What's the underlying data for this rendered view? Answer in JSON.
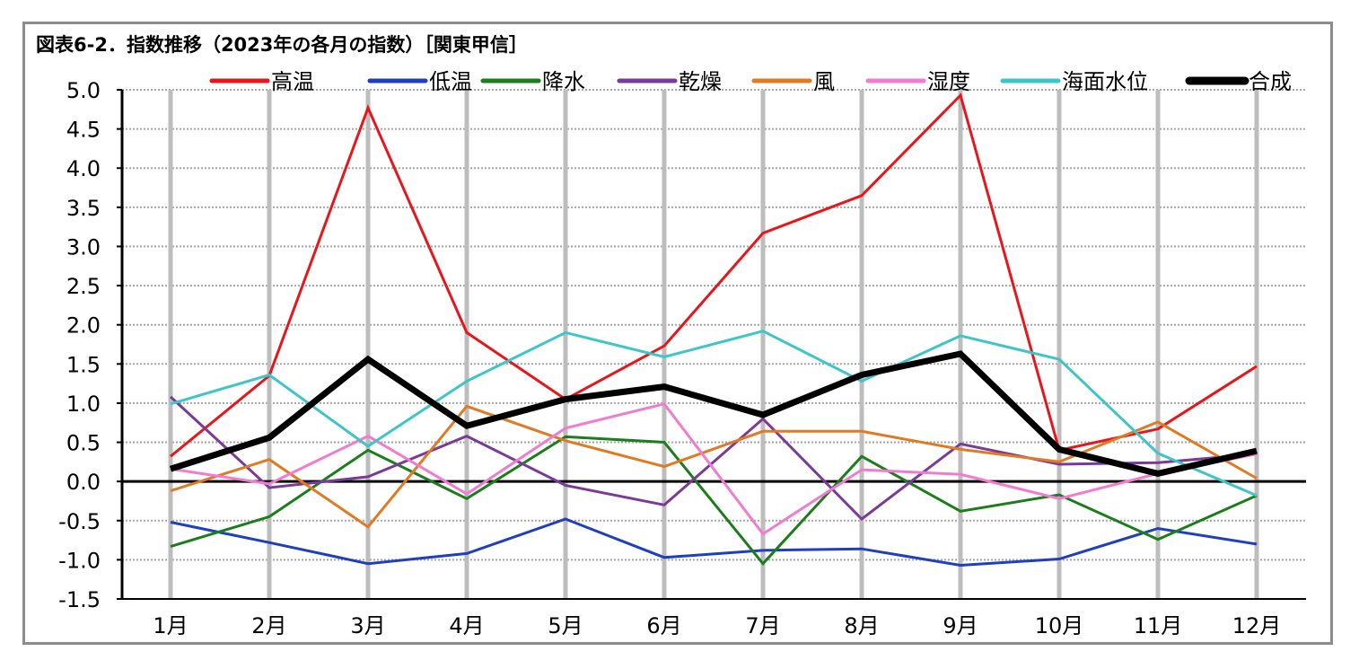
{
  "chart_data": {
    "type": "line",
    "title": "図表6-2．指数推移（2023年の各月の指数）［関東甲信］",
    "xlabel": "",
    "ylabel": "",
    "categories": [
      "1月",
      "2月",
      "3月",
      "4月",
      "5月",
      "6月",
      "7月",
      "8月",
      "9月",
      "10月",
      "11月",
      "12月"
    ],
    "ylim": [
      -1.5,
      5.0
    ],
    "yticks": [
      5.0,
      4.5,
      4.0,
      3.5,
      3.0,
      2.5,
      2.0,
      1.5,
      1.0,
      0.5,
      0.0,
      -0.5,
      -1.0,
      -1.5
    ],
    "ytick_labels": [
      "5.0",
      "4.5",
      "4.0",
      "3.5",
      "3.0",
      "2.5",
      "2.0",
      "1.5",
      "1.0",
      "0.5",
      "0.0",
      "-0.5",
      "-1.0",
      "-1.5"
    ],
    "grid": true,
    "legend_position": "top",
    "series": [
      {
        "name": "高温",
        "color": "#e8161b",
        "width": 3,
        "values": [
          0.32,
          1.35,
          4.77,
          1.9,
          1.05,
          1.73,
          3.17,
          3.65,
          4.93,
          0.4,
          0.67,
          1.47
        ]
      },
      {
        "name": "低温",
        "color": "#1f3fbf",
        "width": 3,
        "values": [
          -0.52,
          -0.78,
          -1.05,
          -0.92,
          -0.48,
          -0.97,
          -0.88,
          -0.86,
          -1.07,
          -0.99,
          -0.6,
          -0.8
        ]
      },
      {
        "name": "降水",
        "color": "#1c7d1c",
        "width": 3,
        "values": [
          -0.83,
          -0.45,
          0.4,
          -0.22,
          0.57,
          0.5,
          -1.05,
          0.32,
          -0.38,
          -0.17,
          -0.74,
          -0.18
        ]
      },
      {
        "name": "乾燥",
        "color": "#7a3b98",
        "width": 3,
        "values": [
          1.08,
          -0.08,
          0.06,
          0.58,
          -0.05,
          -0.3,
          0.8,
          -0.48,
          0.48,
          0.22,
          0.24,
          0.35
        ]
      },
      {
        "name": "風",
        "color": "#e07a23",
        "width": 3,
        "values": [
          -0.12,
          0.28,
          -0.58,
          0.96,
          0.52,
          0.19,
          0.64,
          0.64,
          0.41,
          0.25,
          0.76,
          0.04
        ]
      },
      {
        "name": "湿度",
        "color": "#f27bd0",
        "width": 3,
        "values": [
          0.16,
          -0.03,
          0.58,
          -0.16,
          0.68,
          0.99,
          -0.67,
          0.15,
          0.09,
          -0.22,
          0.1,
          0.35
        ]
      },
      {
        "name": "海面水位",
        "color": "#3ec5c7",
        "width": 3,
        "values": [
          0.99,
          1.36,
          0.45,
          1.28,
          1.9,
          1.59,
          1.92,
          1.28,
          1.86,
          1.56,
          0.36,
          -0.18
        ]
      },
      {
        "name": "合成",
        "color": "#000000",
        "width": 7,
        "values": [
          0.16,
          0.56,
          1.56,
          0.71,
          1.05,
          1.21,
          0.85,
          1.36,
          1.63,
          0.41,
          0.1,
          0.39
        ]
      }
    ]
  }
}
